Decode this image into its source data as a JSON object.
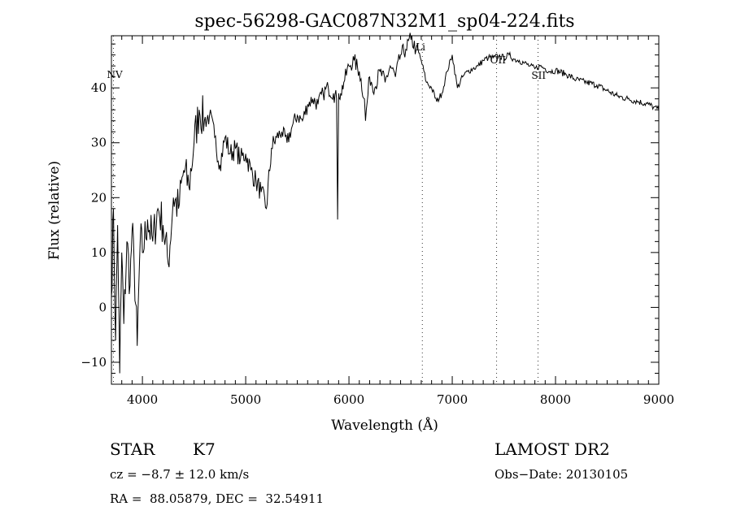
{
  "chart_data": {
    "type": "line",
    "title": "spec-56298-GAC087N32M1_sp04-224.fits",
    "xlabel": "Wavelength (Å)",
    "ylabel": "Flux (relative)",
    "xlim": [
      3700,
      9000
    ],
    "ylim": [
      -14,
      49.5
    ],
    "grid": false,
    "x_ticks": [
      4000,
      5000,
      6000,
      7000,
      8000,
      9000
    ],
    "x_tick_labels": [
      "4000",
      "5000",
      "6000",
      "7000",
      "8000",
      "9000"
    ],
    "y_ticks": [
      -10,
      0,
      10,
      20,
      30,
      40
    ],
    "y_tick_labels": [
      "−10",
      "0",
      "10",
      "20",
      "30",
      "40"
    ],
    "series": [
      {
        "name": "spectrum",
        "x": [
          3700,
          3720,
          3740,
          3760,
          3780,
          3800,
          3820,
          3850,
          3880,
          3900,
          3920,
          3950,
          3980,
          4000,
          4050,
          4100,
          4150,
          4200,
          4250,
          4300,
          4350,
          4400,
          4450,
          4500,
          4550,
          4600,
          4650,
          4700,
          4750,
          4800,
          4850,
          4900,
          4950,
          5000,
          5050,
          5100,
          5150,
          5200,
          5250,
          5300,
          5350,
          5400,
          5450,
          5500,
          5550,
          5600,
          5650,
          5700,
          5750,
          5800,
          5850,
          5880,
          5890,
          5900,
          5920,
          5950,
          6000,
          6050,
          6100,
          6150,
          6160,
          6200,
          6250,
          6300,
          6350,
          6400,
          6450,
          6500,
          6550,
          6600,
          6650,
          6700,
          6750,
          6800,
          6850,
          6900,
          6950,
          7000,
          7050,
          7100,
          7150,
          7200,
          7250,
          7300,
          7350,
          7400,
          7450,
          7500,
          7550,
          7600,
          7650,
          7700,
          7750,
          7800,
          7850,
          7900,
          7950,
          8000,
          8100,
          8200,
          8300,
          8400,
          8500,
          8600,
          8700,
          8800,
          8900,
          8950,
          9000
        ],
        "y": [
          2,
          18,
          -6,
          15,
          -12,
          10,
          -3,
          12,
          4,
          14,
          8,
          -7,
          13,
          10,
          16,
          12,
          18,
          15,
          8,
          20,
          18,
          25,
          22,
          30,
          36,
          34,
          35,
          31,
          26,
          31,
          28,
          29,
          27,
          28,
          25,
          23,
          21,
          18,
          29,
          31,
          32,
          30,
          33,
          35,
          34,
          37,
          38,
          37,
          39,
          40,
          39,
          38,
          16,
          39,
          39,
          41,
          44,
          45,
          43,
          38,
          34,
          42,
          40,
          43,
          41,
          44,
          42,
          46,
          47,
          49,
          47,
          45,
          41,
          40,
          37.5,
          39,
          43,
          46,
          40,
          42,
          43,
          43.5,
          44,
          45,
          45.5,
          45.5,
          45.8,
          45.5,
          46,
          45.2,
          45,
          44.5,
          44,
          43.5,
          44,
          43.5,
          43,
          43.2,
          42.5,
          41.5,
          41,
          40.5,
          39.5,
          38.5,
          38,
          37.5,
          37,
          36.5,
          36
        ]
      }
    ],
    "line_markers": [
      {
        "label": "NV",
        "wavelength": 3720
      },
      {
        "label": "Li",
        "wavelength": 6710
      },
      {
        "label": "OII",
        "wavelength": 7430
      },
      {
        "label": "SII",
        "wavelength": 7830
      }
    ]
  },
  "info": {
    "class": "STAR",
    "subclass": "K7",
    "survey": "LAMOST DR2",
    "cz": "cz = −8.7 ± 12.0 km/s",
    "obs_date": "Obs−Date: 20130105",
    "coords": "RA =  88.05879, DEC =  32.54911"
  }
}
